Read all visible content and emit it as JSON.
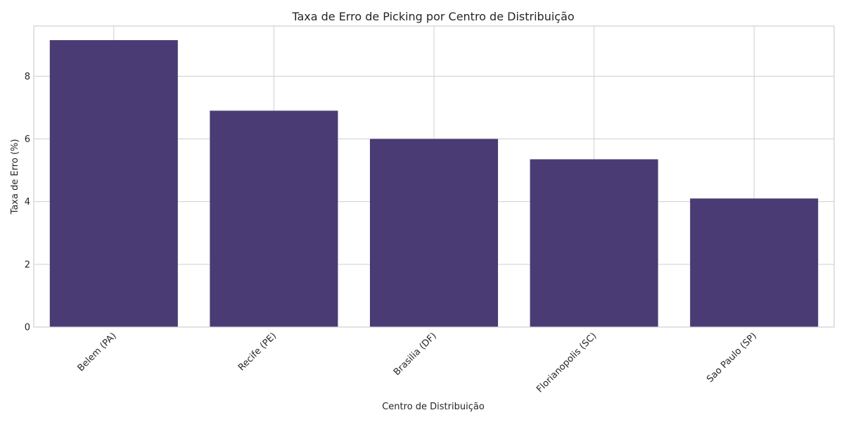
{
  "chart_data": {
    "type": "bar",
    "title": "Taxa de Erro de Picking por Centro de Distribuição",
    "xlabel": "Centro de Distribuição",
    "ylabel": "Taxa de Erro (%)",
    "categories": [
      "Belem (PA)",
      "Recife (PE)",
      "Brasilia (DF)",
      "Florianopolis (SC)",
      "Sao Paulo (SP)"
    ],
    "values": [
      9.15,
      6.9,
      6.0,
      5.35,
      4.1
    ],
    "ylim": [
      0,
      9.6
    ],
    "yticks": [
      0,
      2,
      4,
      6,
      8
    ],
    "grid": true,
    "bar_color": "#4a3b74",
    "tick_rotation_deg": 45
  }
}
